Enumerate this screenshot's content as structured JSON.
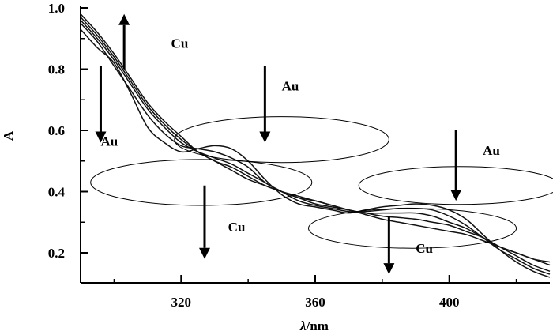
{
  "chart_data": {
    "type": "line",
    "xlabel": "λ/nm",
    "ylabel": "A",
    "xlim": [
      290,
      430
    ],
    "ylim": [
      0.1,
      1.0
    ],
    "x_ticks": [
      320,
      360,
      400
    ],
    "y_ticks": [
      0.2,
      0.4,
      0.6,
      0.8,
      1.0
    ],
    "grid": false,
    "x": [
      290,
      295,
      300,
      305,
      310,
      315,
      320,
      325,
      330,
      335,
      340,
      345,
      350,
      355,
      360,
      365,
      370,
      375,
      380,
      385,
      390,
      395,
      400,
      405,
      410,
      415,
      420,
      425,
      430
    ],
    "series": [
      {
        "values": [
          0.93,
          0.87,
          0.82,
          0.72,
          0.61,
          0.56,
          0.53,
          0.54,
          0.55,
          0.54,
          0.5,
          0.44,
          0.39,
          0.36,
          0.35,
          0.34,
          0.33,
          0.34,
          0.35,
          0.355,
          0.36,
          0.355,
          0.34,
          0.31,
          0.26,
          0.21,
          0.17,
          0.14,
          0.12
        ]
      },
      {
        "values": [
          0.95,
          0.89,
          0.81,
          0.73,
          0.65,
          0.59,
          0.55,
          0.54,
          0.53,
          0.51,
          0.48,
          0.43,
          0.4,
          0.37,
          0.355,
          0.345,
          0.335,
          0.335,
          0.34,
          0.345,
          0.345,
          0.34,
          0.32,
          0.29,
          0.25,
          0.21,
          0.18,
          0.15,
          0.13
        ]
      },
      {
        "values": [
          0.96,
          0.9,
          0.83,
          0.75,
          0.67,
          0.61,
          0.56,
          0.53,
          0.51,
          0.49,
          0.46,
          0.43,
          0.4,
          0.38,
          0.36,
          0.35,
          0.34,
          0.33,
          0.33,
          0.33,
          0.33,
          0.32,
          0.3,
          0.28,
          0.25,
          0.22,
          0.19,
          0.16,
          0.14
        ]
      },
      {
        "values": [
          0.97,
          0.91,
          0.84,
          0.76,
          0.68,
          0.62,
          0.57,
          0.53,
          0.5,
          0.48,
          0.45,
          0.42,
          0.4,
          0.38,
          0.37,
          0.355,
          0.34,
          0.33,
          0.32,
          0.315,
          0.31,
          0.3,
          0.29,
          0.27,
          0.25,
          0.22,
          0.2,
          0.18,
          0.16
        ]
      },
      {
        "values": [
          0.98,
          0.92,
          0.85,
          0.77,
          0.69,
          0.63,
          0.58,
          0.53,
          0.5,
          0.47,
          0.44,
          0.42,
          0.4,
          0.385,
          0.37,
          0.355,
          0.34,
          0.325,
          0.31,
          0.3,
          0.29,
          0.28,
          0.27,
          0.26,
          0.24,
          0.22,
          0.2,
          0.18,
          0.17
        ]
      }
    ],
    "annotations": [
      {
        "text": "Cu",
        "x": 317,
        "y": 0.87
      },
      {
        "text": "Au",
        "x": 296,
        "y": 0.55
      },
      {
        "text": "Au",
        "x": 350,
        "y": 0.73
      },
      {
        "text": "Cu",
        "x": 334,
        "y": 0.27
      },
      {
        "text": "Au",
        "x": 410,
        "y": 0.52
      },
      {
        "text": "Cu",
        "x": 390,
        "y": 0.2
      }
    ],
    "arrows": [
      {
        "direction": "up",
        "x": 303,
        "from": 0.8,
        "to": 0.98
      },
      {
        "direction": "down",
        "x": 296,
        "from": 0.81,
        "to": 0.56
      },
      {
        "direction": "down",
        "x": 345,
        "from": 0.81,
        "to": 0.56
      },
      {
        "direction": "down",
        "x": 327,
        "from": 0.42,
        "to": 0.18
      },
      {
        "direction": "down",
        "x": 402,
        "from": 0.6,
        "to": 0.37
      },
      {
        "direction": "down",
        "x": 382,
        "from": 0.32,
        "to": 0.13
      }
    ],
    "ellipses": [
      {
        "cx": 350,
        "cy": 0.57,
        "rx": 32,
        "ry": 0.075
      },
      {
        "cx": 326,
        "cy": 0.43,
        "rx": 33,
        "ry": 0.075
      },
      {
        "cx": 403,
        "cy": 0.42,
        "rx": 30,
        "ry": 0.062
      },
      {
        "cx": 389,
        "cy": 0.28,
        "rx": 31,
        "ry": 0.065
      }
    ]
  }
}
